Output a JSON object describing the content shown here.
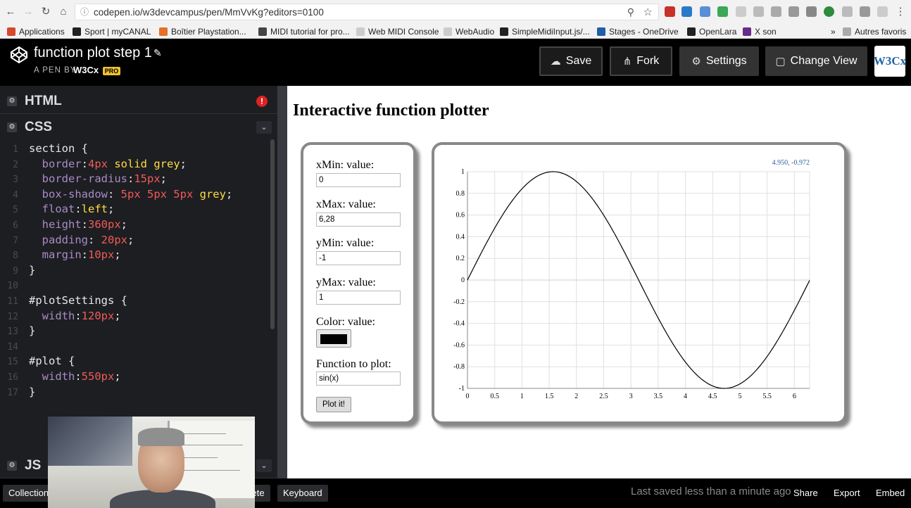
{
  "browser": {
    "url": "codepen.io/w3devcampus/pen/MmVvKg?editors=0100",
    "bookmarks": [
      {
        "label": "Applications",
        "color": "#d44a2d"
      },
      {
        "label": "Sport | myCANAL",
        "color": "#222222"
      },
      {
        "label": "Boîtier Playstation...",
        "color": "#e56f2b"
      },
      {
        "label": "MIDI tutorial for pro...",
        "color": "#444444"
      },
      {
        "label": "Web MIDI Console",
        "color": "#cccccc"
      },
      {
        "label": "WebAudio",
        "color": "#cccccc"
      },
      {
        "label": "SimpleMidiInput.js/...",
        "color": "#222222"
      },
      {
        "label": "Stages - OneDrive",
        "color": "#1f5fa8"
      },
      {
        "label": "OpenLara",
        "color": "#222222"
      },
      {
        "label": "X son",
        "color": "#6a2a8a"
      }
    ],
    "overflow": "»",
    "other_bookmarks": "Autres favoris"
  },
  "header": {
    "title": "function plot step 1",
    "pen_by": "A PEN BY",
    "author": "W3Cx",
    "pro": "PRO",
    "save": "Save",
    "fork": "Fork",
    "settings": "Settings",
    "change_view": "Change View",
    "logo_text": "W3Cx"
  },
  "editor": {
    "html_label": "HTML",
    "css_label": "CSS",
    "js_label": "JS",
    "error_mark": "!",
    "code_lines": [
      {
        "n": "1",
        "parts": [
          [
            "section {",
            "c-sel"
          ]
        ]
      },
      {
        "n": "2",
        "parts": [
          [
            "  border",
            "c-prop"
          ],
          [
            ":",
            "c-punc"
          ],
          [
            "4px",
            "c-num"
          ],
          [
            " solid grey",
            "c-val"
          ],
          [
            ";",
            "c-punc"
          ]
        ]
      },
      {
        "n": "3",
        "parts": [
          [
            "  border-radius",
            "c-prop"
          ],
          [
            ":",
            "c-punc"
          ],
          [
            "15px",
            "c-num"
          ],
          [
            ";",
            "c-punc"
          ]
        ]
      },
      {
        "n": "4",
        "parts": [
          [
            "  box-shadow",
            "c-prop"
          ],
          [
            ": ",
            "c-punc"
          ],
          [
            "5px 5px 5px",
            "c-num"
          ],
          [
            " grey",
            "c-val"
          ],
          [
            ";",
            "c-punc"
          ]
        ]
      },
      {
        "n": "5",
        "parts": [
          [
            "  float",
            "c-prop"
          ],
          [
            ":",
            "c-punc"
          ],
          [
            "left",
            "c-val"
          ],
          [
            ";",
            "c-punc"
          ]
        ]
      },
      {
        "n": "6",
        "parts": [
          [
            "  height",
            "c-prop"
          ],
          [
            ":",
            "c-punc"
          ],
          [
            "360px",
            "c-num"
          ],
          [
            ";",
            "c-punc"
          ]
        ]
      },
      {
        "n": "7",
        "parts": [
          [
            "  padding",
            "c-prop"
          ],
          [
            ": ",
            "c-punc"
          ],
          [
            "20px",
            "c-num"
          ],
          [
            ";",
            "c-punc"
          ]
        ]
      },
      {
        "n": "8",
        "parts": [
          [
            "  margin",
            "c-prop"
          ],
          [
            ":",
            "c-punc"
          ],
          [
            "10px",
            "c-num"
          ],
          [
            ";",
            "c-punc"
          ]
        ]
      },
      {
        "n": "9",
        "parts": [
          [
            "}",
            "c-sel"
          ]
        ]
      },
      {
        "n": "10",
        "parts": []
      },
      {
        "n": "11",
        "parts": [
          [
            "#plotSettings {",
            "c-sel"
          ]
        ]
      },
      {
        "n": "12",
        "parts": [
          [
            "  width",
            "c-prop"
          ],
          [
            ":",
            "c-punc"
          ],
          [
            "120px",
            "c-num"
          ],
          [
            ";",
            "c-punc"
          ]
        ]
      },
      {
        "n": "13",
        "parts": [
          [
            "}",
            "c-sel"
          ]
        ]
      },
      {
        "n": "14",
        "parts": []
      },
      {
        "n": "15",
        "parts": [
          [
            "#plot {",
            "c-sel"
          ]
        ]
      },
      {
        "n": "16",
        "parts": [
          [
            "  width",
            "c-prop"
          ],
          [
            ":",
            "c-punc"
          ],
          [
            "550px",
            "c-num"
          ],
          [
            ";",
            "c-punc"
          ]
        ]
      },
      {
        "n": "17",
        "parts": [
          [
            "}",
            "c-sel"
          ]
        ]
      }
    ]
  },
  "preview": {
    "heading": "Interactive function plotter",
    "settings": {
      "xmin_label": "xMin: value:",
      "xmin_value": "0",
      "xmax_label": "xMax: value:",
      "xmax_value": "6,28",
      "ymin_label": "yMin: value:",
      "ymin_value": "-1",
      "ymax_label": "yMax: value:",
      "ymax_value": "1",
      "color_label": "Color: value:",
      "color_value": "#000000",
      "function_label": "Function to plot:",
      "function_value": "sin(x)",
      "plot_button": "Plot it!"
    }
  },
  "chart_data": {
    "type": "line",
    "function": "sin(x)",
    "xlim": [
      0,
      6.28
    ],
    "ylim": [
      -1,
      1
    ],
    "x_ticks": [
      "0",
      "0.5",
      "1",
      "1.5",
      "2",
      "2.5",
      "3",
      "3.5",
      "4",
      "4.5",
      "5",
      "5.5",
      "6"
    ],
    "y_ticks": [
      "1",
      "0.8",
      "0.6",
      "0.4",
      "0.2",
      "0",
      "-0.2",
      "-0.4",
      "-0.6",
      "-0.8",
      "-1"
    ],
    "x_tick_values": [
      0,
      0.5,
      1,
      1.5,
      2,
      2.5,
      3,
      3.5,
      4,
      4.5,
      5,
      5.5,
      6
    ],
    "y_tick_values": [
      1,
      0.8,
      0.6,
      0.4,
      0.2,
      0,
      -0.2,
      -0.4,
      -0.6,
      -0.8,
      -1
    ],
    "coord_readout": "4.950, -0.972",
    "color": "#000000",
    "grid": true
  },
  "bottom": {
    "collections": "Collections",
    "delete": "Delete",
    "keyboard": "Keyboard",
    "saved": "Last saved less than a minute ago",
    "share": "Share",
    "export": "Export",
    "embed": "Embed"
  }
}
